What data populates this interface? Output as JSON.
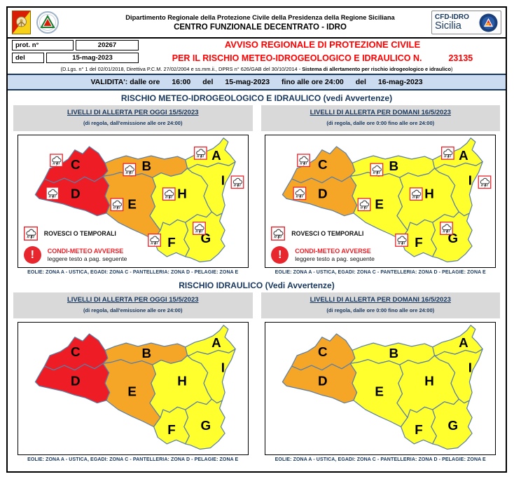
{
  "header": {
    "department": "Dipartimento Regionale della Protezione Civile della Presidenza della Regione Siciliana",
    "center": "CENTRO FUNZIONALE DECENTRATO - IDRO",
    "cfd_logo_line1": "CFD-IDRO",
    "cfd_logo_line2": "Sicilia"
  },
  "protocol": {
    "prot_label": "prot. n°",
    "prot_value": "20267",
    "del_label": "del",
    "del_value": "15-mag-2023"
  },
  "title": {
    "line1": "AVVISO REGIONALE DI PROTEZIONE CIVILE",
    "line2": "PER IL RISCHIO METEO-IDROGEOLOGICO E IDRAULICO N.",
    "number": "23135"
  },
  "law_line": {
    "prefix": "(D.Lgs. n° 1 del 02/01/2018, Direttiva P.C.M. 27/02/2004 e ss.mm.ii., DPRS n° 626/GAB del 30/10/2014 - ",
    "bold": "Sistema di allertamento per rischio idrogeologico e idraulico",
    "suffix": ")"
  },
  "validity": {
    "segments": [
      "VALIDITA': dalle ore",
      "16:00",
      "del",
      "15-mag-2023",
      "fino alle ore 24:00",
      "del",
      "16-mag-2023"
    ]
  },
  "sections": {
    "meteo": {
      "title": "RISCHIO METEO-IDROGEOLOGICO E IDRAULICO (vedi Avvertenze)"
    },
    "idraulico": {
      "title": "RISCHIO IDRAULICO (Vedi Avvertenze)"
    }
  },
  "panel_headers": {
    "oggi": {
      "title": "LIVELLI DI ALLERTA PER OGGI 15/5/2023",
      "subtitle": "(di regola, dall'emissione alle ore 24:00)"
    },
    "domani": {
      "title": "LIVELLI DI ALLERTA PER DOMANI 16/5/2023",
      "subtitle": "(di regola, dalle ore 0:00 fino alle ore 24:00)"
    }
  },
  "caption": "EOLIE: ZONA A - USTICA, EGADI: ZONA C - PANTELLERIA: ZONA D - PELAGIE: ZONA E",
  "legend": {
    "storm_icon": "rain-shower-thunder-icon",
    "storm_label": "ROVESCI O TEMPORALI",
    "adverse_icon": "exclamation-alert-icon",
    "adverse_title": "CONDI-METEO AVVERSE",
    "adverse_note": "leggere testo a pag. seguente"
  },
  "zones": [
    "A",
    "B",
    "C",
    "D",
    "E",
    "F",
    "G",
    "H",
    "I"
  ],
  "alert_levels": {
    "red": "#EE1C24",
    "orange": "#F5A626",
    "yellow": "#FFFF2E"
  },
  "zone_border_color": "#5B7FA6",
  "maps": {
    "meteo_oggi": {
      "zones": {
        "A": "yellow",
        "B": "orange",
        "C": "red",
        "D": "red",
        "E": "orange",
        "F": "yellow",
        "G": "yellow",
        "H": "yellow",
        "I": "yellow"
      },
      "storm_icons": true,
      "legend": true
    },
    "meteo_domani": {
      "zones": {
        "A": "yellow",
        "B": "yellow",
        "C": "orange",
        "D": "orange",
        "E": "yellow",
        "F": "yellow",
        "G": "yellow",
        "H": "yellow",
        "I": "yellow"
      },
      "storm_icons": true,
      "legend": true
    },
    "idraulico_oggi": {
      "zones": {
        "A": "yellow",
        "B": "orange",
        "C": "red",
        "D": "red",
        "E": "orange",
        "F": "yellow",
        "G": "yellow",
        "H": "yellow",
        "I": "yellow"
      },
      "storm_icons": false,
      "legend": false
    },
    "idraulico_domani": {
      "zones": {
        "A": "yellow",
        "B": "yellow",
        "C": "orange",
        "D": "orange",
        "E": "yellow",
        "F": "yellow",
        "G": "yellow",
        "H": "yellow",
        "I": "yellow"
      },
      "storm_icons": false,
      "legend": false
    }
  }
}
